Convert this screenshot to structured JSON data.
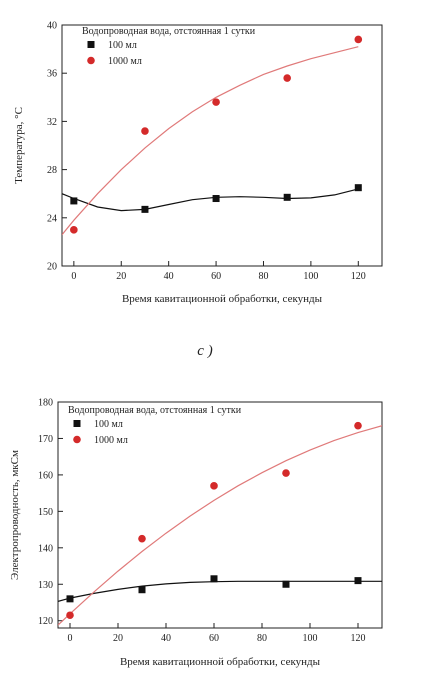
{
  "panel_label": "c )",
  "chart_data": [
    {
      "type": "scatter",
      "legend_title": "Водопроводная вода, отстоянная 1 сутки",
      "xlabel": "Время кавитационной обработки, секунды",
      "ylabel": "Температура, °C",
      "xlim": [
        -5,
        130
      ],
      "ylim": [
        20,
        40
      ],
      "x_ticks": [
        0,
        20,
        40,
        60,
        80,
        100,
        120
      ],
      "y_ticks": [
        20,
        24,
        28,
        32,
        36,
        40
      ],
      "legend_position": "top-left",
      "grid": false,
      "series": [
        {
          "name": "100 мл",
          "marker": "square",
          "color": "#111111",
          "x": [
            0,
            30,
            60,
            90,
            120
          ],
          "y": [
            25.4,
            24.7,
            25.6,
            25.7,
            26.5
          ],
          "fit": [
            [
              -5,
              26.0
            ],
            [
              0,
              25.6
            ],
            [
              10,
              24.9
            ],
            [
              20,
              24.6
            ],
            [
              30,
              24.7
            ],
            [
              40,
              25.1
            ],
            [
              50,
              25.5
            ],
            [
              60,
              25.7
            ],
            [
              70,
              25.75
            ],
            [
              80,
              25.7
            ],
            [
              90,
              25.6
            ],
            [
              100,
              25.65
            ],
            [
              110,
              25.9
            ],
            [
              120,
              26.4
            ]
          ]
        },
        {
          "name": "1000 мл",
          "marker": "circle",
          "color": "#d42a2a",
          "line_color": "#e07a7a",
          "x": [
            0,
            30,
            60,
            90,
            120
          ],
          "y": [
            23.0,
            31.2,
            33.6,
            35.6,
            38.8
          ],
          "fit": [
            [
              -5,
              22.6
            ],
            [
              0,
              23.8
            ],
            [
              10,
              26.0
            ],
            [
              20,
              28.0
            ],
            [
              30,
              29.8
            ],
            [
              40,
              31.4
            ],
            [
              50,
              32.8
            ],
            [
              60,
              34.0
            ],
            [
              70,
              35.0
            ],
            [
              80,
              35.9
            ],
            [
              90,
              36.6
            ],
            [
              100,
              37.2
            ],
            [
              110,
              37.7
            ],
            [
              120,
              38.2
            ]
          ]
        }
      ]
    },
    {
      "type": "scatter",
      "legend_title": "Водопроводная вода, отстоянная 1 сутки",
      "xlabel": "Время кавитационной обработки, секунды",
      "ylabel": "Электропроводность, мкСм",
      "xlim": [
        -5,
        130
      ],
      "ylim": [
        118,
        180
      ],
      "x_ticks": [
        0,
        20,
        40,
        60,
        80,
        100,
        120
      ],
      "y_ticks": [
        120,
        130,
        140,
        150,
        160,
        170,
        180
      ],
      "legend_position": "top-left",
      "grid": false,
      "series": [
        {
          "name": "100 мл",
          "marker": "square",
          "color": "#111111",
          "x": [
            0,
            30,
            60,
            90,
            120
          ],
          "y": [
            126,
            128.5,
            131.5,
            130,
            131
          ],
          "fit": [
            [
              -5,
              125.3
            ],
            [
              0,
              126.2
            ],
            [
              10,
              127.5
            ],
            [
              20,
              128.6
            ],
            [
              30,
              129.5
            ],
            [
              40,
              130.1
            ],
            [
              50,
              130.5
            ],
            [
              60,
              130.7
            ],
            [
              70,
              130.8
            ],
            [
              80,
              130.8
            ],
            [
              90,
              130.8
            ],
            [
              100,
              130.8
            ],
            [
              110,
              130.8
            ],
            [
              120,
              130.8
            ],
            [
              130,
              130.8
            ]
          ]
        },
        {
          "name": "1000 мл",
          "marker": "circle",
          "color": "#d42a2a",
          "line_color": "#e07a7a",
          "x": [
            0,
            30,
            60,
            90,
            120
          ],
          "y": [
            121.5,
            142.5,
            157,
            160.5,
            173.5
          ],
          "fit": [
            [
              -5,
              118.8
            ],
            [
              0,
              121.9
            ],
            [
              10,
              127.9
            ],
            [
              20,
              133.6
            ],
            [
              30,
              139.0
            ],
            [
              40,
              144.0
            ],
            [
              50,
              148.7
            ],
            [
              60,
              153.0
            ],
            [
              70,
              157.0
            ],
            [
              80,
              160.6
            ],
            [
              90,
              163.9
            ],
            [
              100,
              166.8
            ],
            [
              110,
              169.4
            ],
            [
              120,
              171.6
            ],
            [
              130,
              173.5
            ]
          ]
        }
      ]
    }
  ]
}
